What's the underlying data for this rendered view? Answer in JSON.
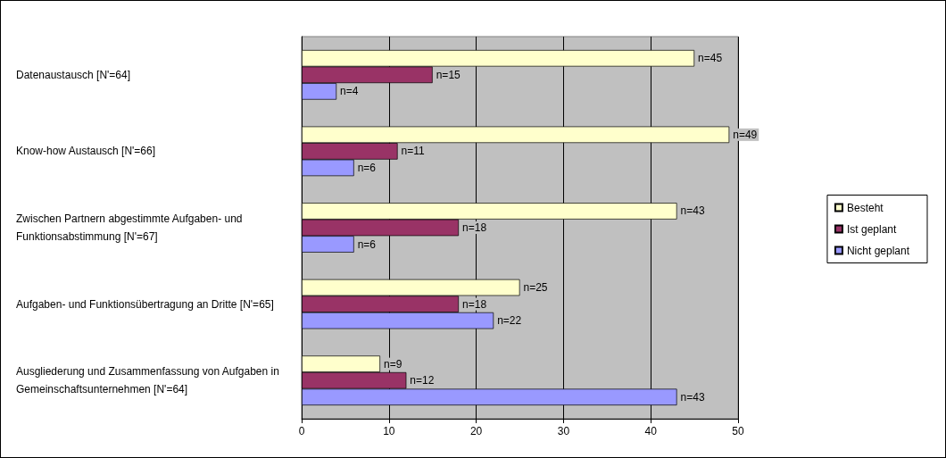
{
  "chart_data": {
    "type": "bar",
    "orientation": "horizontal",
    "categories": [
      "Datenaustausch [N'=64]",
      "Know-how Austausch [N'=66]",
      "Zwischen Partnern abgestimmte Aufgaben- und Funktionsabstimmung [N'=67]",
      "Aufgaben- und Funktionsübertragung an Dritte [N'=65]",
      "Ausgliederung und Zusammenfassung von Aufgaben in Gemeinschaftsunternehmen [N'=64]"
    ],
    "series": [
      {
        "name": "Besteht",
        "color": "#ffffcc",
        "values": [
          45,
          49,
          43,
          25,
          9
        ],
        "value_labels": [
          "n=45",
          "n=49",
          "n=43",
          "n=25",
          "n=9"
        ]
      },
      {
        "name": "Ist geplant",
        "color": "#993366",
        "values": [
          15,
          11,
          18,
          18,
          12
        ],
        "value_labels": [
          "n=15",
          "n=11",
          "n=18",
          "n=18",
          "n=12"
        ]
      },
      {
        "name": "Nicht geplant",
        "color": "#9999ff",
        "values": [
          4,
          6,
          6,
          22,
          43
        ],
        "value_labels": [
          "n=4",
          "n=6",
          "n=6",
          "n=22",
          "n=43"
        ]
      }
    ],
    "xlim": [
      0,
      50
    ],
    "xticks": [
      0,
      10,
      20,
      30,
      40,
      50
    ],
    "grid": "x",
    "legend": "right"
  }
}
